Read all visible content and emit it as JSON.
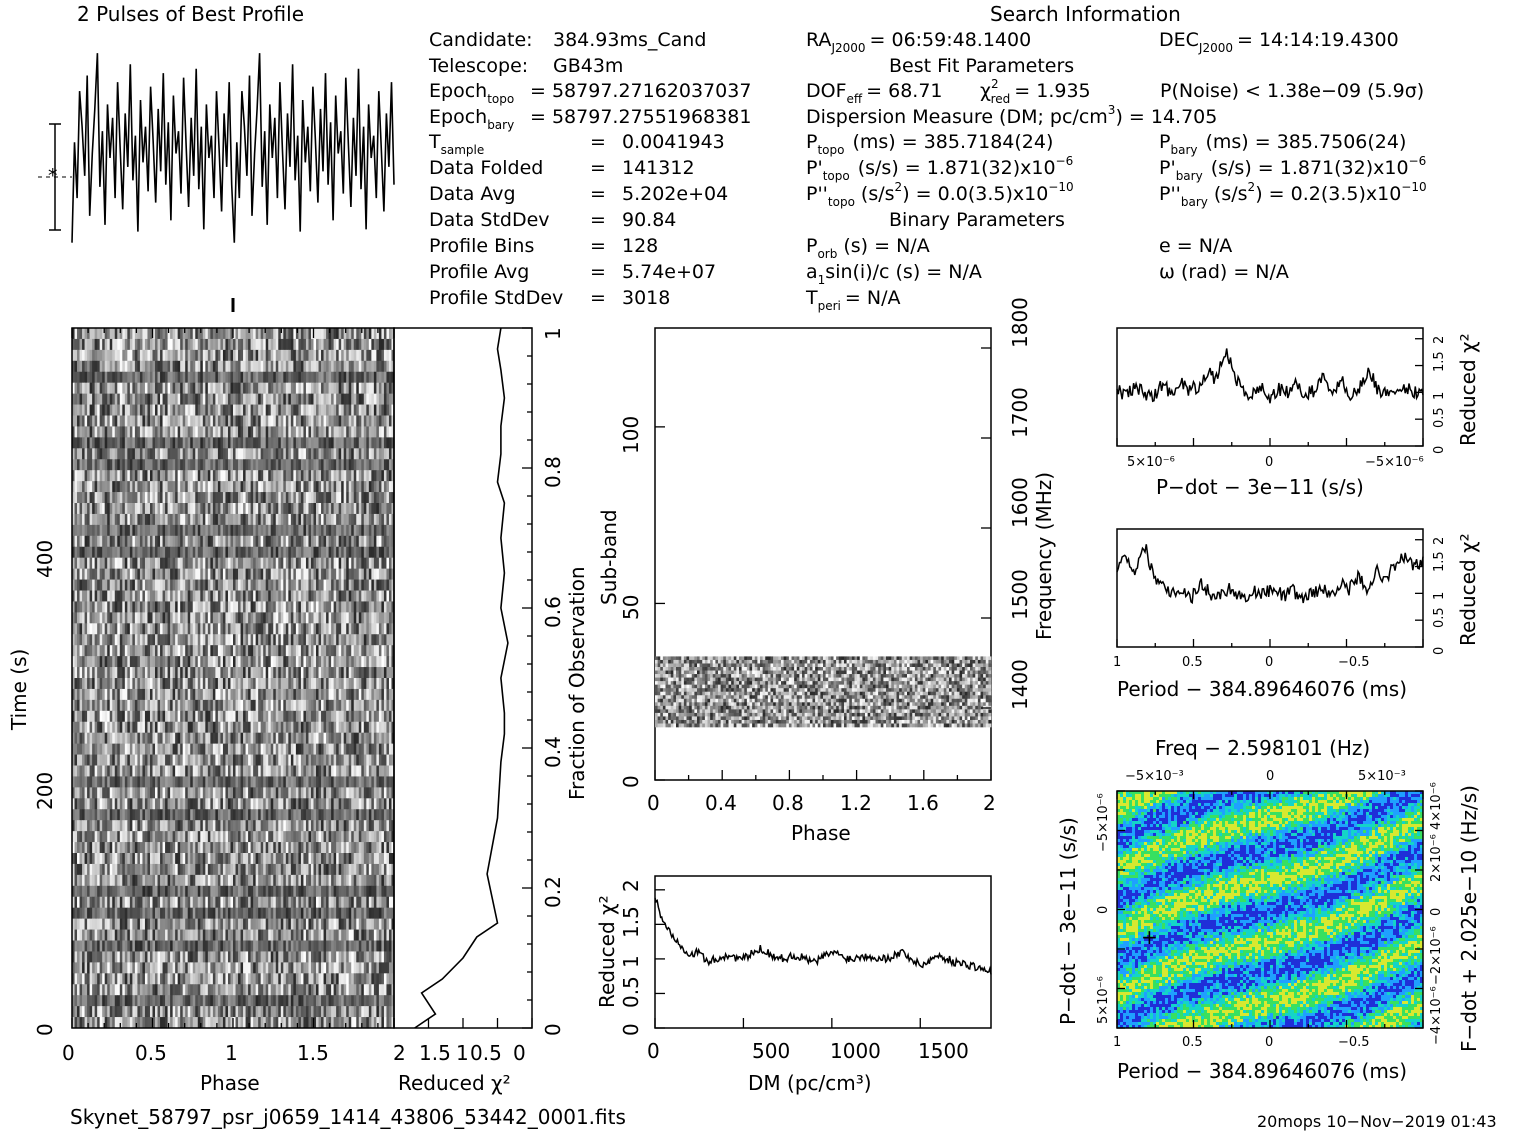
{
  "header": {
    "profile_title": "2 Pulses of Best Profile",
    "search_title": "Search Information",
    "best_fit_title": "Best Fit Parameters",
    "binary_title": "Binary Parameters"
  },
  "candidate": {
    "candidate_label": "Candidate:",
    "candidate_value": "384.93ms_Cand",
    "telescope_label": "Telescope:",
    "telescope_value": "GB43m",
    "epoch_topo_label": "Epoch",
    "epoch_topo_sub": "topo",
    "epoch_topo_value": "= 58797.27162037037",
    "epoch_bary_label": "Epoch",
    "epoch_bary_sub": "bary",
    "epoch_bary_value": "= 58797.27551968381",
    "tsample_label": "T",
    "tsample_sub": "sample",
    "tsample_value": "0.0041943",
    "folded_label": "Data Folded",
    "folded_value": "141312",
    "avg_label": "Data Avg",
    "avg_value": "5.202e+04",
    "std_label": "Data StdDev",
    "std_value": "90.84",
    "bins_label": "Profile Bins",
    "bins_value": "128",
    "pavg_label": "Profile Avg",
    "pavg_value": "5.74e+07",
    "pstd_label": "Profile StdDev",
    "pstd_value": "3018",
    "equals": "="
  },
  "search": {
    "ra_label": "RA",
    "ra_sub": "J2000",
    "ra_value": "= 06:59:48.1400",
    "dec_label": "DEC",
    "dec_sub": "J2000",
    "dec_value": "= 14:14:19.4300",
    "dof_label": "DOF",
    "dof_sub": "eff",
    "dof_value": "= 68.71",
    "chi_label": "χ",
    "chi_sup": "2",
    "chi_sub": "red",
    "chi_value": "= 1.935",
    "pnoise": "P(Noise) < 1.38e−09   (5.9σ)",
    "dm_label": "Dispersion Measure (DM; pc/cm",
    "dm_sup": "3",
    "dm_value": ") = 14.705",
    "ptopo_label": "P",
    "ptopo_sub": "topo",
    "ptopo_value": "(ms) =  385.7184(24)",
    "pbary_label": "P",
    "pbary_sub": "bary",
    "pbary_value": "(ms) =  385.7506(24)",
    "pdtopo_label": "P'",
    "pdtopo_sub": "topo",
    "pdtopo_value": "(s/s) =  1.871(32)x10",
    "pdtopo_exp": "−6",
    "pdbary_label": "P'",
    "pdbary_sub": "bary",
    "pdbary_value": "(s/s) =  1.871(32)x10",
    "pdbary_exp": "−6",
    "pddtopo_label": "P''",
    "pddtopo_sub": "topo",
    "pddtopo_value": "(s/s",
    "pddtopo_sup": "2",
    "pddtopo_value2": ") = 0.0(3.5)x10",
    "pddtopo_exp": "−10",
    "pddbary_label": "P''",
    "pddbary_sub": "bary",
    "pddbary_value": "(s/s",
    "pddbary_sup": "2",
    "pddbary_value2": ") =  0.2(3.5)x10",
    "pddbary_exp": "−10",
    "porb": "P",
    "porb_sub": "orb",
    "porb_value": "(s) = N/A",
    "ecc": "e = N/A",
    "a1sini": "a",
    "a1sini_sub": "1",
    "a1sini_value": "sin(i)/c (s) = N/A",
    "omega": "ω (rad) = N/A",
    "tperi": "T",
    "tperi_sub": "peri",
    "tperi_value": "= N/A"
  },
  "footer": {
    "filename": "Skynet_58797_psr_j0659_1414_43806_53442_0001.fits",
    "stamp": "20mops 10−Nov−2019 01:43"
  },
  "chart_data": [
    {
      "type": "line",
      "name": "pulse-profile",
      "title": "2 Pulses of Best Profile",
      "xlim": [
        0,
        2
      ],
      "profile_bins": 128,
      "values": [
        0.1,
        0.55,
        0.3,
        0.78,
        0.62,
        0.4,
        0.85,
        0.22,
        0.5,
        0.7,
        0.95,
        0.35,
        0.6,
        0.18,
        0.72,
        0.48,
        0.66,
        0.3,
        0.82,
        0.52,
        0.25,
        0.68,
        0.44,
        0.9,
        0.38,
        0.58,
        0.15,
        0.74,
        0.46,
        0.62,
        0.33,
        0.8,
        0.56,
        0.28,
        0.7,
        0.42,
        0.86,
        0.36,
        0.64,
        0.2,
        0.76,
        0.5,
        0.6,
        0.32,
        0.84,
        0.54,
        0.26,
        0.66,
        0.4,
        0.88,
        0.34,
        0.62,
        0.16,
        0.72,
        0.48,
        0.58,
        0.3,
        0.78,
        0.52,
        0.24,
        0.68,
        0.44,
        0.82,
        0.36
      ],
      "note_error_bar": "±1σ"
    },
    {
      "type": "heatmap",
      "name": "time-phase",
      "xlabel": "Phase",
      "ylabel": "Time (s)",
      "xlim": [
        0,
        2
      ],
      "ylim": [
        0,
        580
      ],
      "xticks": [
        "0",
        "0.5",
        "1",
        "1.5"
      ],
      "yticks": [
        "0",
        "200",
        "400"
      ],
      "rows": 64,
      "cols": 128,
      "dark_rows_time_s": [
        20,
        60,
        90,
        110,
        175,
        200,
        400,
        410,
        470,
        490,
        540
      ]
    },
    {
      "type": "line",
      "name": "time-reduced-chi2",
      "xlabel": "Reduced χ²",
      "ylabel_right": "Fraction of Observation",
      "xticks": [
        "2",
        "1.5",
        "1",
        "0.5",
        "0"
      ],
      "yticks_right": [
        "0",
        "0.2",
        "0.4",
        "0.6",
        "0.8",
        "1"
      ],
      "x": [
        0.3,
        0.6,
        0.4,
        0.7,
        1.0,
        1.2,
        1.5,
        1.35,
        1.5,
        1.55,
        1.6,
        1.6,
        1.55,
        1.65,
        1.55,
        1.6,
        1.55,
        1.6,
        1.5,
        1.55,
        1.55,
        1.6,
        1.55,
        1.5,
        1.55
      ],
      "y": [
        0.0,
        0.02,
        0.05,
        0.07,
        0.1,
        0.13,
        0.15,
        0.22,
        0.3,
        0.38,
        0.42,
        0.45,
        0.5,
        0.55,
        0.6,
        0.65,
        0.7,
        0.75,
        0.78,
        0.82,
        0.86,
        0.9,
        0.94,
        0.97,
        1.0
      ]
    },
    {
      "type": "heatmap",
      "name": "subband-phase",
      "xlabel": "Phase",
      "ylabel": "Sub-band",
      "ylabel_right": "Frequency (MHz)",
      "xlim": [
        0,
        2
      ],
      "ylim": [
        0,
        128
      ],
      "xticks": [
        "0",
        "0.4",
        "0.8",
        "1.2",
        "1.6",
        "2"
      ],
      "yticks": [
        "0",
        "50",
        "100"
      ],
      "yticks_right": [
        "1400",
        "1500",
        "1600",
        "1700",
        "1800"
      ],
      "active_subbands": [
        15,
        35
      ]
    },
    {
      "type": "line",
      "name": "dm-chi2",
      "xlabel": "DM (pc/cm³)",
      "ylabel": "Reduced χ²",
      "xticks": [
        "0",
        "500",
        "1000",
        "1500"
      ],
      "yticks": [
        "0",
        "0.5",
        "1",
        "1.5",
        "2"
      ],
      "xlim": [
        0,
        1900
      ],
      "ylim": [
        0,
        2.2
      ],
      "x": [
        0,
        50,
        100,
        150,
        200,
        250,
        300,
        400,
        500,
        600,
        700,
        800,
        900,
        1000,
        1100,
        1200,
        1300,
        1400,
        1500,
        1600,
        1700,
        1800,
        1900
      ],
      "y": [
        1.9,
        1.5,
        1.35,
        1.2,
        1.05,
        1.1,
        0.95,
        1.05,
        1.0,
        1.15,
        1.0,
        1.05,
        0.95,
        1.1,
        1.0,
        1.05,
        1.0,
        1.1,
        0.9,
        1.05,
        0.95,
        0.9,
        0.8
      ]
    },
    {
      "type": "line",
      "name": "pdot-chi2",
      "xlabel": "P−dot − 3e−11 (s/s)",
      "ylabel": "Reduced χ²",
      "xticks": [
        "5×10⁻⁶",
        "0",
        "−5×10⁻⁶"
      ],
      "yticks": [
        "0",
        "0.5",
        "1",
        "1.5",
        "2"
      ],
      "ylim": [
        0,
        2.2
      ],
      "values": [
        1.05,
        0.95,
        1.1,
        1.0,
        0.9,
        1.15,
        1.0,
        1.2,
        1.05,
        1.1,
        1.4,
        1.2,
        1.8,
        1.35,
        1.0,
        0.95,
        1.1,
        0.9,
        1.05,
        1.0,
        1.15,
        0.95,
        1.05,
        1.3,
        1.0,
        1.2,
        0.95,
        1.1,
        1.4,
        1.05,
        1.0,
        0.9,
        1.1,
        1.0,
        1.05
      ]
    },
    {
      "type": "line",
      "name": "period-chi2",
      "xlabel": "Period − 384.89646076 (ms)",
      "ylabel": "Reduced χ²",
      "xticks": [
        "1",
        "0.5",
        "0",
        "−0.5"
      ],
      "yticks": [
        "0",
        "0.5",
        "1",
        "1.5",
        "2"
      ],
      "ylim": [
        0,
        2.2
      ],
      "values": [
        1.5,
        1.7,
        1.4,
        1.9,
        1.3,
        1.2,
        1.0,
        1.1,
        0.9,
        1.2,
        1.0,
        0.95,
        1.1,
        1.0,
        0.9,
        1.05,
        1.0,
        1.1,
        0.95,
        1.05,
        0.9,
        1.0,
        1.1,
        0.95,
        1.2,
        1.05,
        1.3,
        1.1,
        1.4,
        1.3,
        1.5,
        1.7,
        1.5,
        1.6
      ]
    },
    {
      "type": "heatmap",
      "name": "period-pdot",
      "title": "Freq − 2.598101 (Hz)",
      "xlabel": "Period − 384.89646076 (ms)",
      "ylabel": "P−dot − 3e−11 (s/s)",
      "ylabel_right": "F−dot + 2.025e−10 (Hz/s)",
      "xticks": [
        "1",
        "0.5",
        "0",
        "−0.5"
      ],
      "xticks_top": [
        "−5×10⁻³",
        "0",
        "5×10⁻³"
      ],
      "yticks": [
        "5×10⁻⁶",
        "0",
        "−5×10⁻⁶"
      ],
      "yticks_right": [
        "−4×10⁻⁶",
        "−2×10⁻⁶",
        "0",
        "2×10⁻⁶",
        "4×10⁻⁶"
      ],
      "best_fit_marker": [
        0.85,
        -1.5e-06
      ],
      "colors": [
        "#1f2fd8",
        "#1fa0ff",
        "#14d4c8",
        "#38e060",
        "#d8e830"
      ]
    }
  ]
}
